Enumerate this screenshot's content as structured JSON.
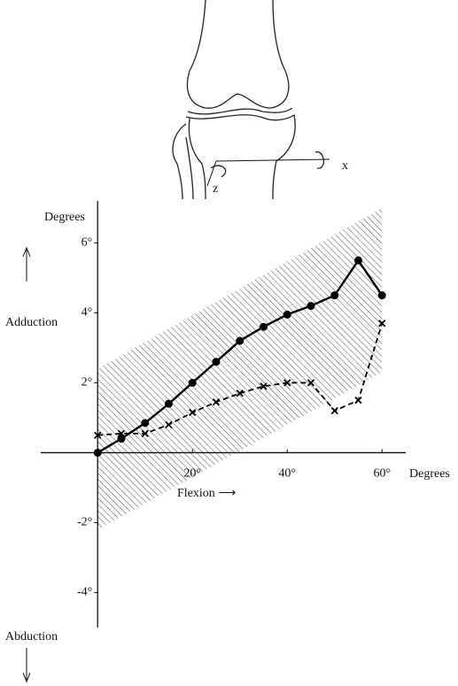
{
  "diagram": {
    "axis_labels": [
      "x",
      "z"
    ]
  },
  "chart_data": {
    "type": "line",
    "y_label": "Degrees",
    "x_label": "Degrees",
    "flexion_label": "Flexion ⟶",
    "adduction_label": "Adduction",
    "abduction_label": "Abduction",
    "xlim": [
      -12,
      65
    ],
    "ylim": [
      -5,
      7.2
    ],
    "xticks": [
      {
        "value": 20,
        "label": "20°"
      },
      {
        "value": 40,
        "label": "40°"
      },
      {
        "value": 60,
        "label": "60°"
      }
    ],
    "yticks": [
      {
        "value": 6,
        "label": "6°"
      },
      {
        "value": 4,
        "label": "4°"
      },
      {
        "value": 2,
        "label": "2°"
      },
      {
        "value": -2,
        "label": "-2°"
      },
      {
        "value": -4,
        "label": "-4°"
      }
    ],
    "band": {
      "x": [
        0,
        60
      ],
      "lower": [
        -2.2,
        2.3
      ],
      "upper": [
        2.4,
        7.0
      ]
    },
    "x": [
      0,
      5,
      10,
      15,
      20,
      25,
      30,
      35,
      40,
      45,
      50,
      55,
      60
    ],
    "series": [
      {
        "color": "#000",
        "style": "solid",
        "marker": "circle",
        "values": [
          0,
          0.4,
          0.85,
          1.4,
          2.0,
          2.6,
          3.2,
          3.6,
          3.95,
          4.2,
          4.5,
          5.5,
          4.5
        ]
      },
      {
        "color": "#000",
        "style": "dashed",
        "marker": "x",
        "values": [
          0.5,
          0.55,
          0.55,
          0.8,
          1.15,
          1.45,
          1.7,
          1.9,
          2.0,
          2.0,
          1.2,
          1.5,
          3.7
        ]
      }
    ]
  }
}
